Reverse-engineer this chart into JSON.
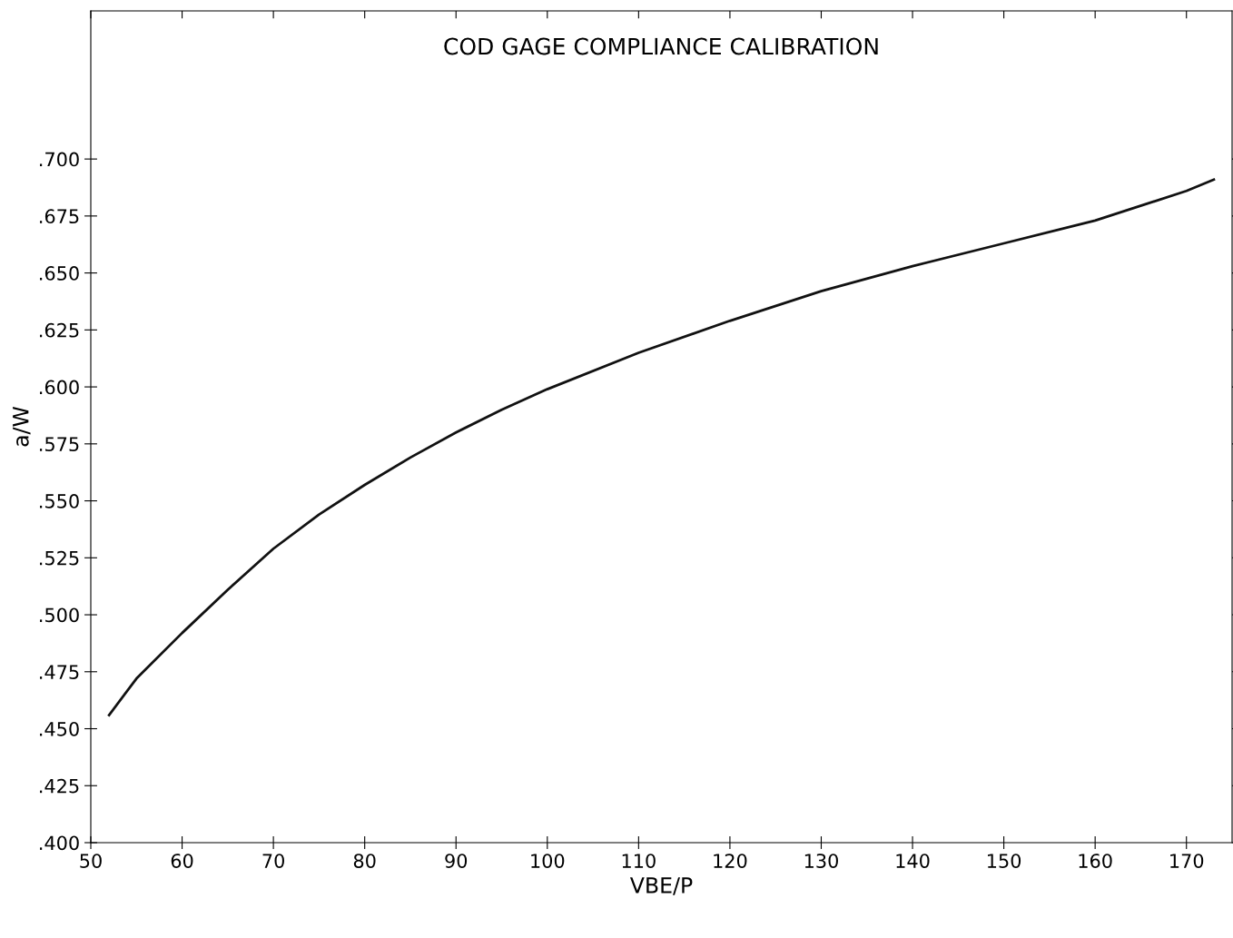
{
  "chart_data": {
    "type": "line",
    "title": "COD GAGE COMPLIANCE CALIBRATION",
    "xlabel": "VBE/P",
    "ylabel": "a/W",
    "x": [
      52,
      55,
      60,
      65,
      70,
      75,
      80,
      85,
      90,
      95,
      100,
      110,
      120,
      130,
      140,
      150,
      160,
      170,
      173
    ],
    "series": [
      {
        "color": "#111111",
        "values": [
          0.456,
          0.472,
          0.492,
          0.511,
          0.529,
          0.544,
          0.557,
          0.569,
          0.58,
          0.59,
          0.599,
          0.615,
          0.629,
          0.642,
          0.653,
          0.663,
          0.673,
          0.686,
          0.691
        ]
      }
    ],
    "xlim": [
      50,
      175
    ],
    "ylim": [
      0.4,
      0.765
    ],
    "xticks": [
      50,
      60,
      70,
      80,
      90,
      100,
      110,
      120,
      130,
      140,
      150,
      160,
      170
    ],
    "yticks": [
      {
        "value": 0.4,
        "label": ".400"
      },
      {
        "value": 0.425,
        "label": ".425"
      },
      {
        "value": 0.45,
        "label": ".450"
      },
      {
        "value": 0.475,
        "label": ".475"
      },
      {
        "value": 0.5,
        "label": ".500"
      },
      {
        "value": 0.525,
        "label": ".525"
      },
      {
        "value": 0.55,
        "label": ".550"
      },
      {
        "value": 0.575,
        "label": ".575"
      },
      {
        "value": 0.6,
        "label": ".600"
      },
      {
        "value": 0.625,
        "label": ".625"
      },
      {
        "value": 0.65,
        "label": ".650"
      },
      {
        "value": 0.675,
        "label": ".675"
      },
      {
        "value": 0.7,
        "label": ".700"
      }
    ],
    "grid": false,
    "marker": "none",
    "line_style": "solid"
  }
}
